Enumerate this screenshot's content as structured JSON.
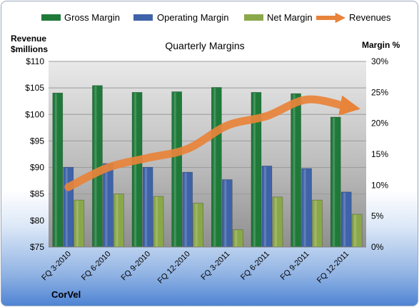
{
  "company": "CorVel",
  "chart_data": {
    "type": "bar",
    "title": "Quarterly Margins",
    "categories": [
      "FQ 3-2010",
      "FQ 6-2010",
      "FQ 9-2010",
      "FQ 12-2010",
      "FQ 3-2011",
      "FQ 6-2011",
      "FQ 9-2011",
      "FQ 12-2011"
    ],
    "left_axis": {
      "label_line1": "Revenue",
      "label_line2": "$millions",
      "ylim": [
        75,
        110
      ],
      "ticks": [
        "$75",
        "$80",
        "$85",
        "$90",
        "$95",
        "$100",
        "$105",
        "$110"
      ]
    },
    "right_axis": {
      "label": "Margin %",
      "ylim": [
        0,
        30
      ],
      "ticks": [
        "0%",
        "5%",
        "10%",
        "15%",
        "20%",
        "25%",
        "30%"
      ]
    },
    "series": [
      {
        "name": "Gross Margin",
        "type": "bar",
        "axis": "right",
        "color": "#1f7a3a",
        "values": [
          24.9,
          26.1,
          25.0,
          25.1,
          25.8,
          25.0,
          24.8,
          21.0
        ]
      },
      {
        "name": "Operating Margin",
        "type": "bar",
        "axis": "right",
        "color": "#3f63a8",
        "values": [
          12.9,
          13.5,
          12.9,
          12.1,
          10.9,
          13.1,
          12.7,
          8.9
        ]
      },
      {
        "name": "Net Margin",
        "type": "bar",
        "axis": "right",
        "color": "#8aa84a",
        "values": [
          7.6,
          8.6,
          8.2,
          7.1,
          2.8,
          8.1,
          7.6,
          5.3
        ]
      },
      {
        "name": "Revenues",
        "type": "line",
        "axis": "left",
        "color": "#e8833a",
        "values": [
          86.3,
          90.0,
          91.8,
          93.5,
          97.9,
          99.7,
          102.8,
          101.5
        ]
      }
    ],
    "legend_position": "top",
    "grid": true
  }
}
